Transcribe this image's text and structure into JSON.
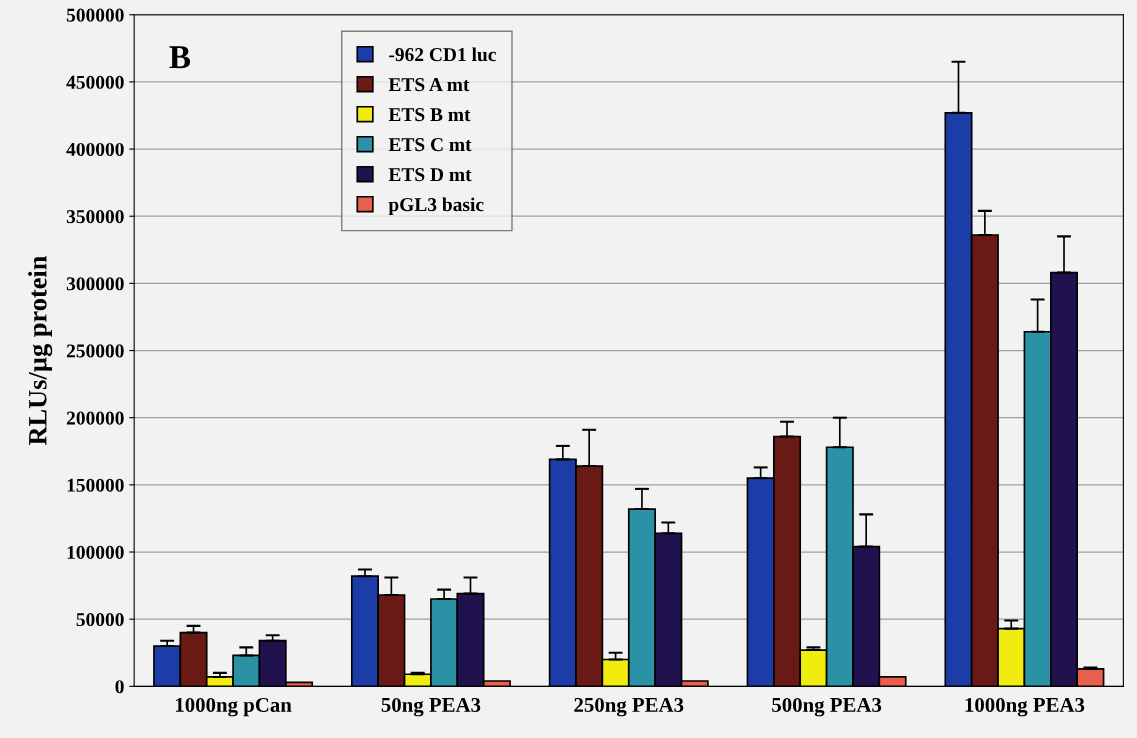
{
  "chart_data": {
    "type": "bar",
    "ylabel": "RLUs/µg protein",
    "annotations": [
      "B"
    ],
    "categories": [
      "1000ng pCan",
      "50ng PEA3",
      "250ng PEA3",
      "500ng PEA3",
      "1000ng PEA3"
    ],
    "series": [
      {
        "name": "-962 CD1 luc",
        "color": "#1c3ca8",
        "values": [
          30000,
          82000,
          169000,
          155000,
          427000
        ],
        "errors": [
          [
            30000,
            34000
          ],
          [
            82000,
            87000
          ],
          [
            169000,
            179000
          ],
          [
            155000,
            163000
          ],
          [
            427000,
            465000
          ]
        ]
      },
      {
        "name": "ETS A mt",
        "color": "#6a1a14",
        "values": [
          40000,
          68000,
          164000,
          186000,
          336000
        ],
        "errors": [
          [
            40000,
            45000
          ],
          [
            68000,
            81000
          ],
          [
            164000,
            191000
          ],
          [
            186000,
            197000
          ],
          [
            336000,
            354000
          ]
        ]
      },
      {
        "name": "ETS B mt",
        "color": "#f0ec10",
        "values": [
          7000,
          9000,
          20000,
          27000,
          43000
        ],
        "errors": [
          [
            7000,
            10000
          ],
          [
            9000,
            10000
          ],
          [
            20000,
            25000
          ],
          [
            27000,
            29000
          ],
          [
            43000,
            49000
          ]
        ]
      },
      {
        "name": "ETS C mt",
        "color": "#2a92a4",
        "values": [
          23000,
          65000,
          132000,
          178000,
          264000
        ],
        "errors": [
          [
            23000,
            29000
          ],
          [
            65000,
            72000
          ],
          [
            132000,
            147000
          ],
          [
            178000,
            200000
          ],
          [
            264000,
            288000
          ]
        ]
      },
      {
        "name": "ETS D mt",
        "color": "#20124e",
        "values": [
          34000,
          69000,
          114000,
          104000,
          308000
        ],
        "errors": [
          [
            34000,
            38000
          ],
          [
            69000,
            81000
          ],
          [
            114000,
            122000
          ],
          [
            104000,
            128000
          ],
          [
            308000,
            335000
          ]
        ]
      },
      {
        "name": "pGL3 basic",
        "color": "#e8604c",
        "values": [
          3000,
          4000,
          4000,
          7000,
          13000
        ],
        "errors": [
          null,
          null,
          null,
          null,
          [
            13000,
            14000
          ]
        ]
      }
    ],
    "ylim": [
      0,
      500000
    ],
    "yticks": [
      0,
      50000,
      100000,
      150000,
      200000,
      250000,
      300000,
      350000,
      400000,
      450000,
      500000
    ],
    "grid": "y",
    "legend": "top left"
  }
}
